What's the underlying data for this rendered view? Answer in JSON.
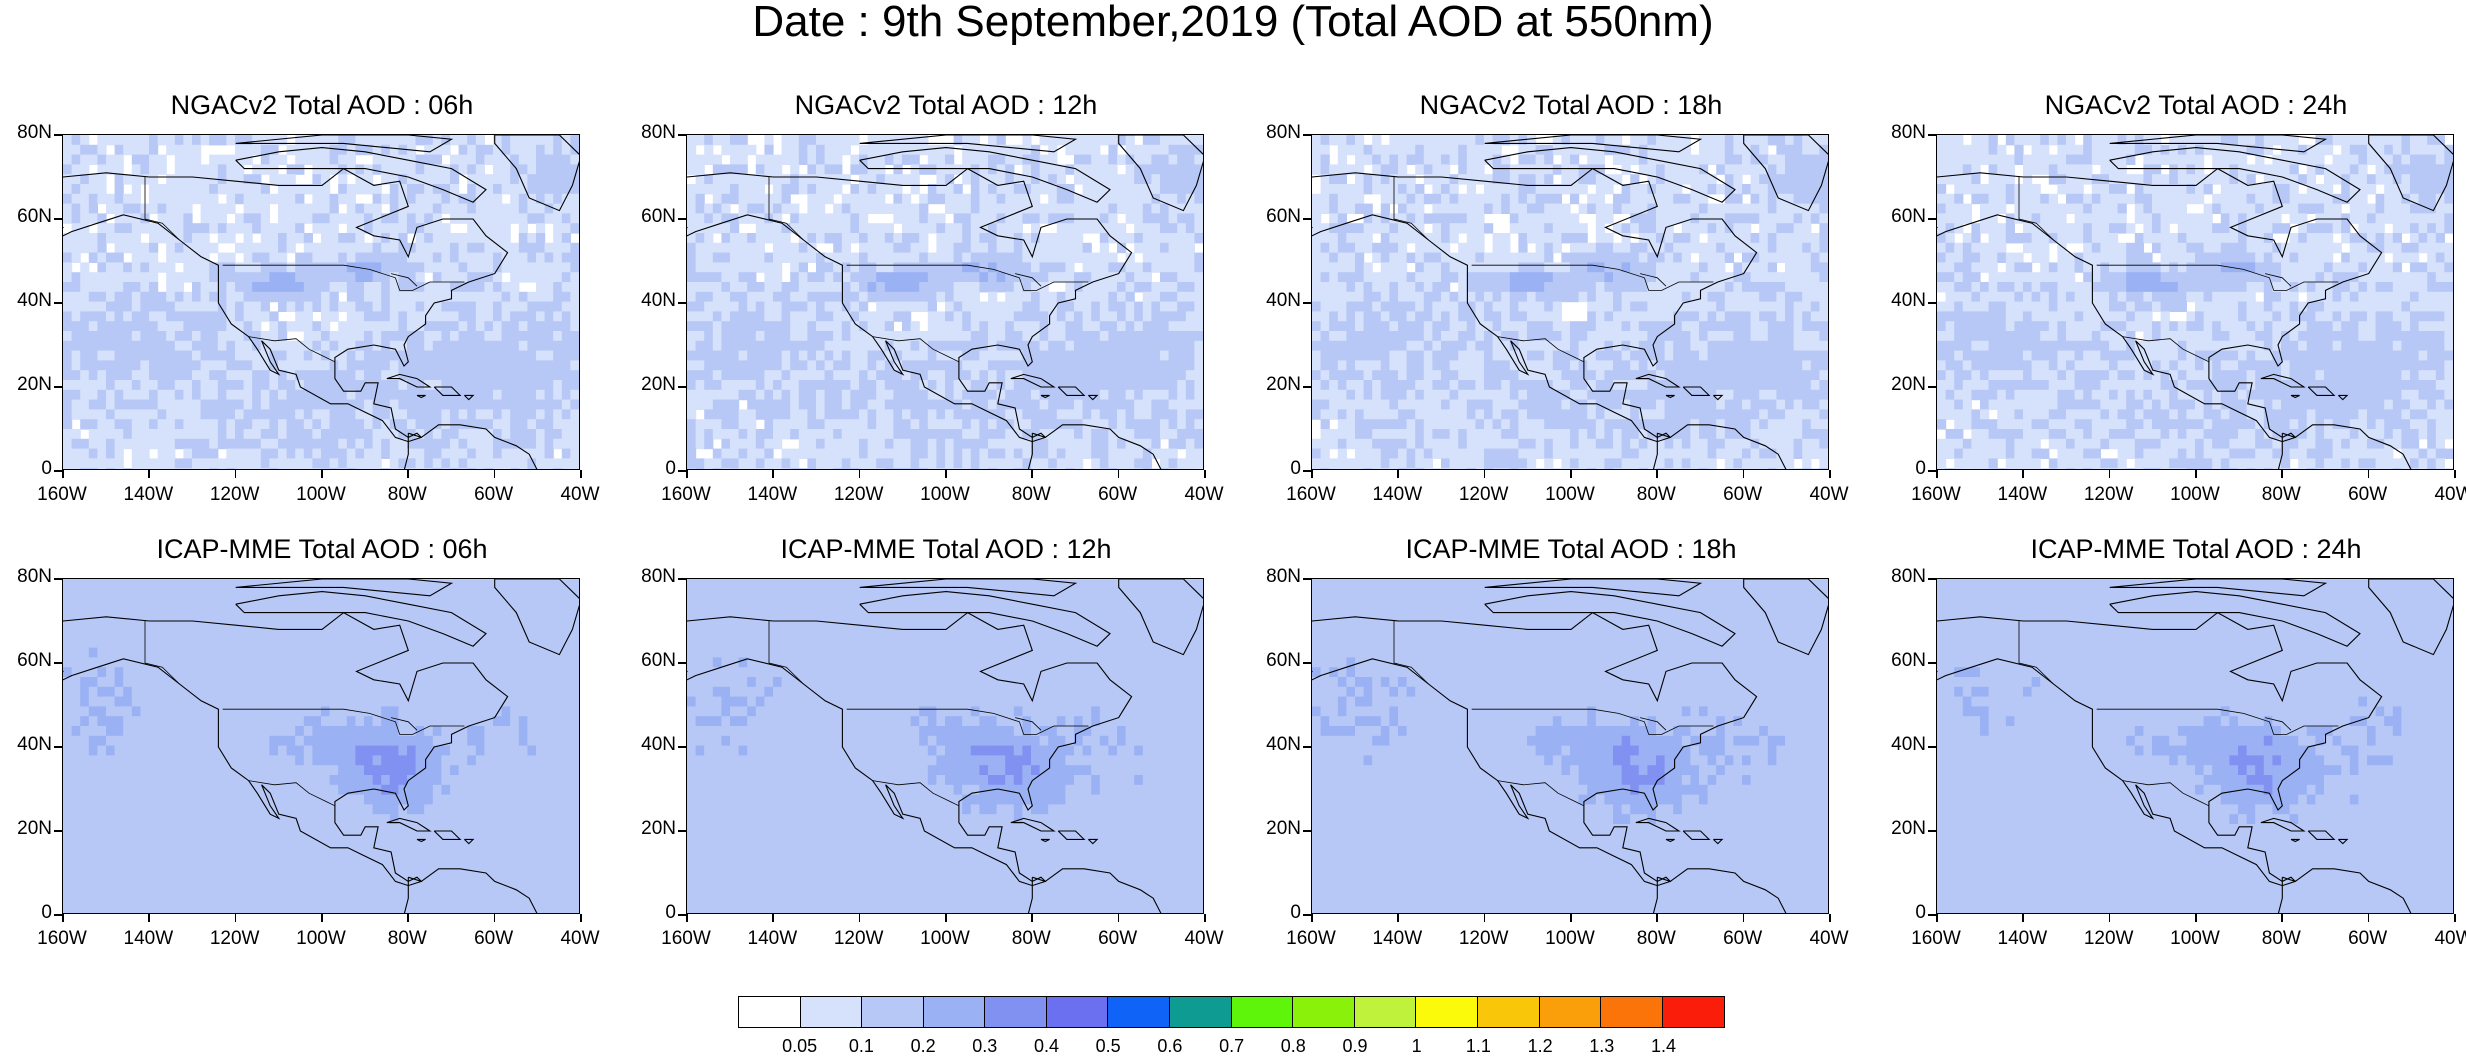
{
  "title": "Date : 9th September,2019 (Total AOD at 550nm)",
  "panels": [
    {
      "title": "NGACv2 Total AOD : 06h",
      "model": "ngac"
    },
    {
      "title": "NGACv2 Total AOD : 12h",
      "model": "ngac"
    },
    {
      "title": "NGACv2 Total AOD : 18h",
      "model": "ngac"
    },
    {
      "title": "NGACv2 Total AOD : 24h",
      "model": "ngac"
    },
    {
      "title": "ICAP-MME Total AOD : 06h",
      "model": "icap"
    },
    {
      "title": "ICAP-MME Total AOD : 12h",
      "model": "icap"
    },
    {
      "title": "ICAP-MME Total AOD : 18h",
      "model": "icap"
    },
    {
      "title": "ICAP-MME Total AOD : 24h",
      "model": "icap"
    }
  ],
  "lat_labels": [
    "80N",
    "60N",
    "40N",
    "20N",
    "0"
  ],
  "lon_labels": [
    "160W",
    "140W",
    "120W",
    "100W",
    "80W",
    "60W",
    "40W"
  ],
  "colorbar": {
    "colors": [
      "#ffffff",
      "#d6e1fb",
      "#b7c8f6",
      "#9ab1f4",
      "#8091f2",
      "#6a70f0",
      "#0f63f7",
      "#0e9b91",
      "#5ff50a",
      "#8af20a",
      "#bff33b",
      "#fafa0a",
      "#fac60a",
      "#fa9e0a",
      "#fa740a",
      "#fa1e0a"
    ],
    "labels": [
      "0.05",
      "0.1",
      "0.2",
      "0.3",
      "0.4",
      "0.5",
      "0.6",
      "0.7",
      "0.8",
      "0.9",
      "1",
      "1.1",
      "1.2",
      "1.3",
      "1.4"
    ]
  }
}
